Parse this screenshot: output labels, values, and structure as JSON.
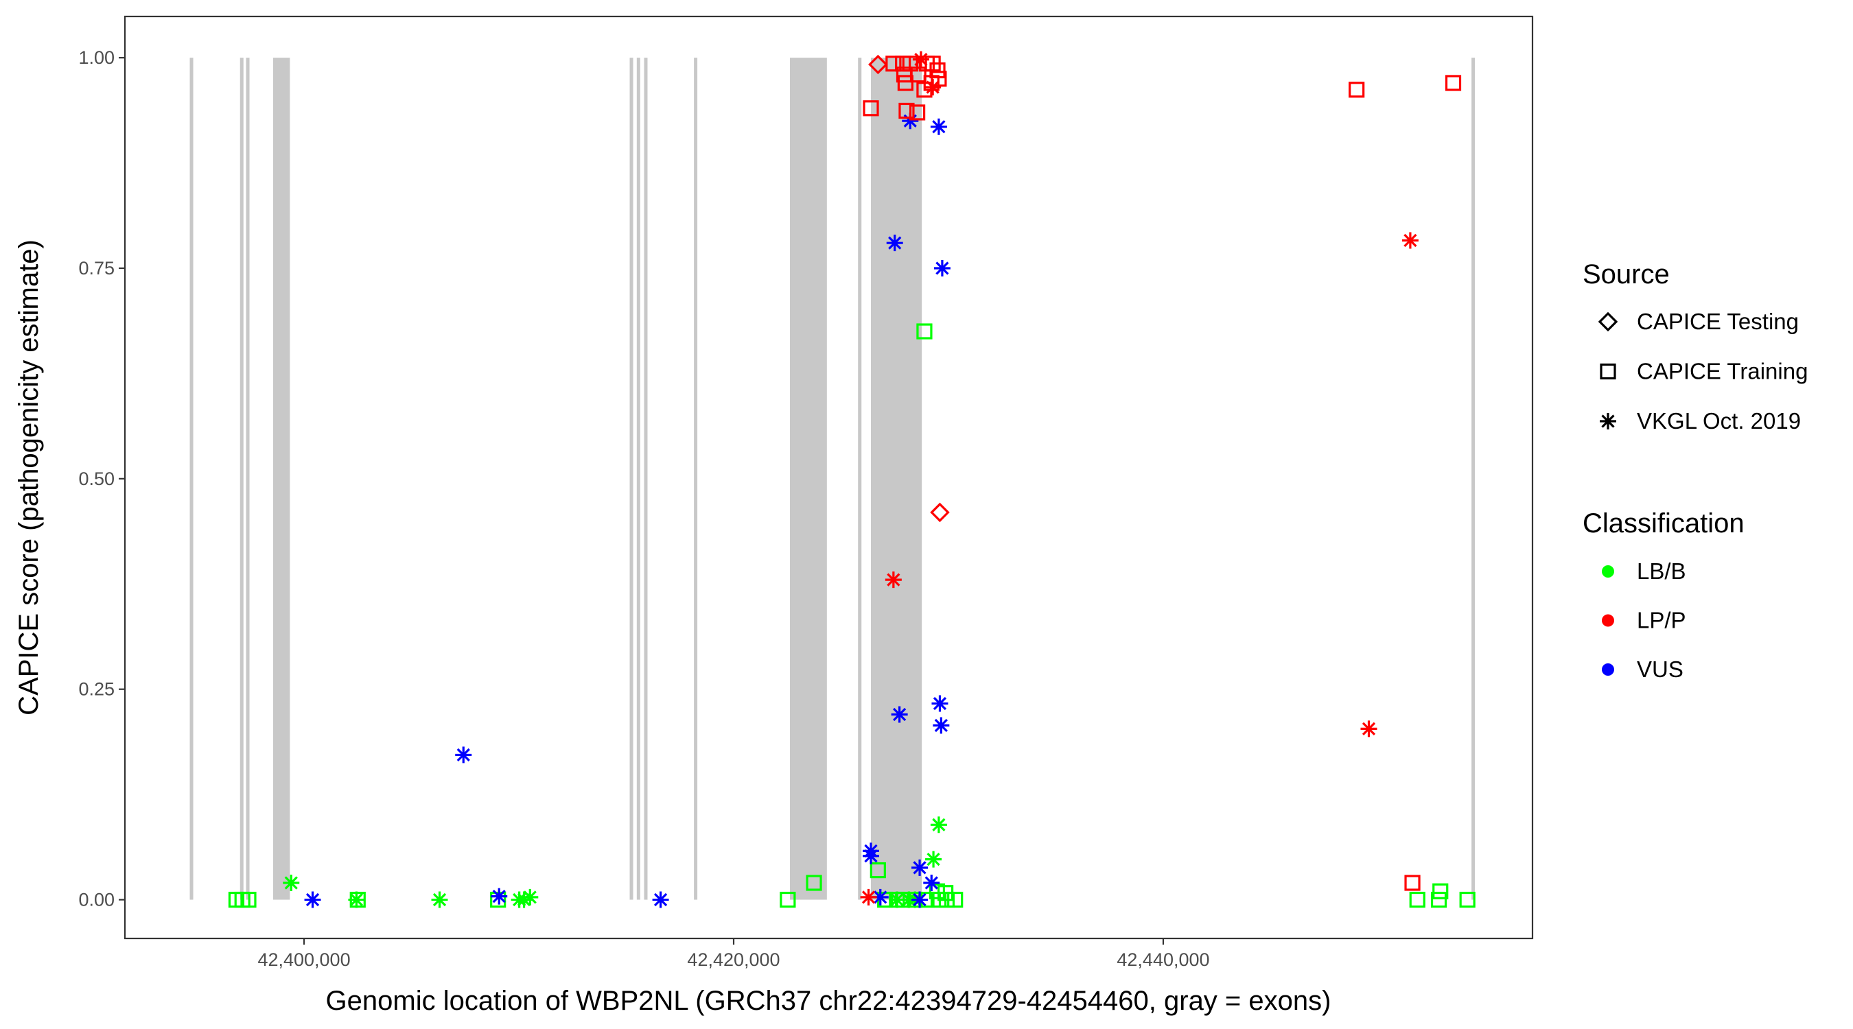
{
  "chart_data": {
    "type": "scatter",
    "xlabel": "Genomic location of WBP2NL (GRCh37 chr22:42394729-42454460, gray = exons)",
    "ylabel": "CAPICE score (pathogenicity estimate)",
    "xlim": [
      42391660,
      42457190
    ],
    "ylim": [
      -0.046,
      1.049
    ],
    "x_ticks": [
      42400000,
      42420000,
      42440000
    ],
    "x_tick_labels": [
      "42,400,000",
      "42,420,000",
      "42,440,000"
    ],
    "y_ticks": [
      0,
      0.25,
      0.5,
      0.75,
      1.0
    ],
    "y_tick_labels": [
      "0.00",
      "0.25",
      "0.50",
      "0.75",
      "1.00"
    ],
    "grid": false,
    "legend_placement": "right",
    "exons": [
      [
        42394680,
        42394780
      ],
      [
        42397020,
        42397120
      ],
      [
        42397300,
        42397400
      ],
      [
        42398560,
        42399340
      ],
      [
        42415160,
        42415260
      ],
      [
        42415490,
        42415590
      ],
      [
        42415830,
        42415930
      ],
      [
        42418150,
        42418250
      ],
      [
        42422620,
        42424340
      ],
      [
        42425790,
        42425870
      ],
      [
        42426390,
        42428760
      ],
      [
        42454350,
        42454430
      ]
    ],
    "legend_source": {
      "title": "Source",
      "items": [
        {
          "label": "CAPICE Testing",
          "shape": "diamond"
        },
        {
          "label": "CAPICE Training",
          "shape": "square"
        },
        {
          "label": "VKGL Oct. 2019",
          "shape": "asterisk"
        }
      ]
    },
    "legend_class": {
      "title": "Classification",
      "items": [
        {
          "label": "LB/B",
          "color": "#00ff00"
        },
        {
          "label": "LP/P",
          "color": "#ff0000"
        },
        {
          "label": "VUS",
          "color": "#0000ff"
        }
      ]
    },
    "series": [
      {
        "source": "CAPICE Training",
        "class": "LB/B",
        "points": [
          [
            42396850,
            0
          ],
          [
            42397130,
            0
          ],
          [
            42397410,
            0
          ],
          [
            42402500,
            0
          ],
          [
            42409030,
            0
          ],
          [
            42422520,
            0
          ],
          [
            42423740,
            0.02
          ],
          [
            42426720,
            0.035
          ],
          [
            42428880,
            0.675
          ],
          [
            42427050,
            0
          ],
          [
            42427600,
            0
          ],
          [
            42427880,
            0
          ],
          [
            42428430,
            0
          ],
          [
            42428980,
            0
          ],
          [
            42429540,
            0
          ],
          [
            42429920,
            0
          ],
          [
            42430310,
            0
          ],
          [
            42429470,
            0.01
          ],
          [
            42429860,
            0.008
          ],
          [
            42451830,
            0
          ],
          [
            42452830,
            0
          ],
          [
            42452900,
            0.01
          ],
          [
            42454160,
            0
          ]
        ]
      },
      {
        "source": "VKGL Oct. 2019",
        "class": "LB/B",
        "points": [
          [
            42399400,
            0.02
          ],
          [
            42402440,
            0
          ],
          [
            42406310,
            0
          ],
          [
            42410020,
            0
          ],
          [
            42410240,
            0
          ],
          [
            42410520,
            0.003
          ],
          [
            42429550,
            0.089
          ],
          [
            42429300,
            0.048
          ],
          [
            42427610,
            0
          ],
          [
            42428160,
            0
          ],
          [
            42428440,
            0
          ]
        ]
      },
      {
        "source": "VKGL Oct. 2019",
        "class": "VUS",
        "points": [
          [
            42400400,
            0
          ],
          [
            42407420,
            0.172
          ],
          [
            42409080,
            0.004
          ],
          [
            42416600,
            0
          ],
          [
            42426390,
            0.058
          ],
          [
            42426390,
            0.052
          ],
          [
            42426830,
            0.003
          ],
          [
            42428660,
            0.038
          ],
          [
            42429210,
            0.02
          ],
          [
            42428660,
            0
          ],
          [
            42427500,
            0.78
          ],
          [
            42429710,
            0.75
          ],
          [
            42428220,
            0.925
          ],
          [
            42429550,
            0.918
          ],
          [
            42427720,
            0.22
          ],
          [
            42429600,
            0.233
          ],
          [
            42429660,
            0.207
          ]
        ]
      },
      {
        "source": "VKGL Oct. 2019",
        "class": "LP/P",
        "points": [
          [
            42427440,
            0.38
          ],
          [
            42451500,
            0.783
          ],
          [
            42449570,
            0.203
          ],
          [
            42428720,
            0.998
          ],
          [
            42429270,
            0.965
          ],
          [
            42426280,
            0.003
          ]
        ]
      },
      {
        "source": "CAPICE Testing",
        "class": "LP/P",
        "points": [
          [
            42426720,
            0.992
          ],
          [
            42429600,
            0.46
          ]
        ]
      },
      {
        "source": "CAPICE Training",
        "class": "LP/P",
        "points": [
          [
            42426390,
            0.94
          ],
          [
            42427440,
            0.993
          ],
          [
            42427880,
            0.993
          ],
          [
            42428220,
            0.993
          ],
          [
            42427940,
            0.98
          ],
          [
            42428000,
            0.97
          ],
          [
            42428050,
            0.937
          ],
          [
            42428550,
            0.935
          ],
          [
            42428600,
            0.98
          ],
          [
            42428880,
            0.962
          ],
          [
            42428990,
            0.993
          ],
          [
            42429270,
            0.993
          ],
          [
            42429490,
            0.985
          ],
          [
            42429550,
            0.975
          ],
          [
            42429210,
            0.97
          ],
          [
            42449000,
            0.962
          ],
          [
            42453500,
            0.97
          ],
          [
            42451600,
            0.02
          ]
        ]
      }
    ]
  }
}
